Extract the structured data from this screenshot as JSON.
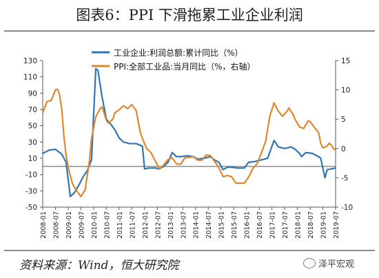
{
  "title": "图表6：PPI 下滑拖累工业企业利润",
  "source": "资料来源：Wind，恒大研究院",
  "watermark": "泽平宏观",
  "watermark_icon": "wechat-icon",
  "chart_data": {
    "type": "line",
    "legend_position": "top-center",
    "grid": false,
    "left_axis": {
      "ylim": [
        -50,
        130
      ],
      "ticks": [
        -50,
        -30,
        -10,
        10,
        30,
        50,
        70,
        90,
        110,
        130
      ]
    },
    "right_axis": {
      "ylim": [
        -10,
        15
      ],
      "ticks": [
        -10,
        -5,
        0,
        5,
        10,
        15
      ]
    },
    "x_range": [
      "2008-01",
      "2019-07"
    ],
    "x_ticks": [
      "2008-01",
      "2008-07",
      "2009-01",
      "2009-07",
      "2010-01",
      "2010-07",
      "2011-01",
      "2011-07",
      "2012-01",
      "2012-07",
      "2013-01",
      "2013-07",
      "2014-01",
      "2014-07",
      "2015-01",
      "2015-07",
      "2016-01",
      "2016-07",
      "2017-01",
      "2017-07",
      "2018-01",
      "2018-07",
      "2019-01",
      "2019-07"
    ],
    "series": [
      {
        "name": "工业企业:利润总额:累计同比（%）",
        "axis": "left",
        "color": "#2e75b6",
        "points": [
          [
            "2008-01",
            16
          ],
          [
            "2008-04",
            20
          ],
          [
            "2008-07",
            21
          ],
          [
            "2008-10",
            15
          ],
          [
            "2008-12",
            5
          ],
          [
            "2009-02",
            -37
          ],
          [
            "2009-04",
            -32
          ],
          [
            "2009-06",
            -23
          ],
          [
            "2009-08",
            -13
          ],
          [
            "2009-10",
            -5
          ],
          [
            "2009-12",
            8
          ],
          [
            "2010-02",
            120
          ],
          [
            "2010-03",
            118
          ],
          [
            "2010-05",
            85
          ],
          [
            "2010-07",
            58
          ],
          [
            "2010-09",
            52
          ],
          [
            "2010-11",
            45
          ],
          [
            "2011-01",
            35
          ],
          [
            "2011-03",
            30
          ],
          [
            "2011-06",
            28
          ],
          [
            "2011-09",
            28
          ],
          [
            "2011-12",
            25
          ],
          [
            "2012-01",
            -3
          ],
          [
            "2012-03",
            -2
          ],
          [
            "2012-06",
            -2
          ],
          [
            "2012-08",
            -3
          ],
          [
            "2012-10",
            0
          ],
          [
            "2012-12",
            5
          ],
          [
            "2013-02",
            17
          ],
          [
            "2013-04",
            12
          ],
          [
            "2013-06",
            12
          ],
          [
            "2013-09",
            13
          ],
          [
            "2013-12",
            12
          ],
          [
            "2014-02",
            9
          ],
          [
            "2014-05",
            10
          ],
          [
            "2014-08",
            12
          ],
          [
            "2014-10",
            8
          ],
          [
            "2014-12",
            5
          ],
          [
            "2015-02",
            -4
          ],
          [
            "2015-04",
            -1
          ],
          [
            "2015-06",
            -1
          ],
          [
            "2015-09",
            -2
          ],
          [
            "2015-12",
            -2
          ],
          [
            "2016-02",
            5
          ],
          [
            "2016-05",
            6
          ],
          [
            "2016-08",
            8
          ],
          [
            "2016-11",
            10
          ],
          [
            "2017-02",
            32
          ],
          [
            "2017-04",
            24
          ],
          [
            "2017-07",
            22
          ],
          [
            "2017-10",
            24
          ],
          [
            "2017-12",
            21
          ],
          [
            "2018-02",
            16
          ],
          [
            "2018-03",
            12
          ],
          [
            "2018-05",
            17
          ],
          [
            "2018-08",
            16
          ],
          [
            "2018-11",
            12
          ],
          [
            "2018-12",
            10
          ],
          [
            "2019-02",
            -14
          ],
          [
            "2019-03",
            -4
          ],
          [
            "2019-05",
            -3
          ],
          [
            "2019-07",
            -2
          ]
        ]
      },
      {
        "name": "PPI:全部工业品:当月同比（%，右轴）",
        "axis": "right",
        "color": "#e3862a",
        "points": [
          [
            "2008-01",
            6.1
          ],
          [
            "2008-03",
            8.0
          ],
          [
            "2008-05",
            8.2
          ],
          [
            "2008-07",
            10.0
          ],
          [
            "2008-08",
            10.1
          ],
          [
            "2008-09",
            9.1
          ],
          [
            "2008-10",
            6.6
          ],
          [
            "2008-11",
            2.0
          ],
          [
            "2008-12",
            -1.1
          ],
          [
            "2009-01",
            -3.3
          ],
          [
            "2009-03",
            -6.0
          ],
          [
            "2009-05",
            -7.2
          ],
          [
            "2009-07",
            -8.2
          ],
          [
            "2009-09",
            -7.0
          ],
          [
            "2009-11",
            -2.1
          ],
          [
            "2009-12",
            1.7
          ],
          [
            "2010-02",
            5.4
          ],
          [
            "2010-04",
            6.8
          ],
          [
            "2010-05",
            7.1
          ],
          [
            "2010-07",
            4.8
          ],
          [
            "2010-08",
            4.3
          ],
          [
            "2010-10",
            5.0
          ],
          [
            "2010-11",
            6.1
          ],
          [
            "2011-01",
            6.6
          ],
          [
            "2011-03",
            7.3
          ],
          [
            "2011-05",
            6.8
          ],
          [
            "2011-07",
            7.5
          ],
          [
            "2011-09",
            6.5
          ],
          [
            "2011-11",
            2.7
          ],
          [
            "2011-12",
            1.7
          ],
          [
            "2012-02",
            0.0
          ],
          [
            "2012-04",
            -0.7
          ],
          [
            "2012-06",
            -2.1
          ],
          [
            "2012-08",
            -3.5
          ],
          [
            "2012-10",
            -2.8
          ],
          [
            "2012-12",
            -1.9
          ],
          [
            "2013-02",
            -1.6
          ],
          [
            "2013-04",
            -2.6
          ],
          [
            "2013-06",
            -2.7
          ],
          [
            "2013-08",
            -1.6
          ],
          [
            "2013-10",
            -1.5
          ],
          [
            "2013-12",
            -1.4
          ],
          [
            "2014-02",
            -2.0
          ],
          [
            "2014-04",
            -2.0
          ],
          [
            "2014-06",
            -1.1
          ],
          [
            "2014-08",
            -1.2
          ],
          [
            "2014-10",
            -2.2
          ],
          [
            "2014-12",
            -3.3
          ],
          [
            "2015-02",
            -4.8
          ],
          [
            "2015-04",
            -4.6
          ],
          [
            "2015-06",
            -4.8
          ],
          [
            "2015-08",
            -5.9
          ],
          [
            "2015-10",
            -5.9
          ],
          [
            "2015-12",
            -5.9
          ],
          [
            "2016-02",
            -4.9
          ],
          [
            "2016-04",
            -3.4
          ],
          [
            "2016-06",
            -2.6
          ],
          [
            "2016-08",
            -0.8
          ],
          [
            "2016-10",
            1.2
          ],
          [
            "2016-12",
            5.5
          ],
          [
            "2017-02",
            7.8
          ],
          [
            "2017-04",
            6.4
          ],
          [
            "2017-06",
            5.5
          ],
          [
            "2017-08",
            6.3
          ],
          [
            "2017-09",
            6.9
          ],
          [
            "2017-11",
            5.8
          ],
          [
            "2017-12",
            4.9
          ],
          [
            "2018-02",
            3.7
          ],
          [
            "2018-04",
            3.4
          ],
          [
            "2018-06",
            4.7
          ],
          [
            "2018-07",
            4.6
          ],
          [
            "2018-09",
            3.6
          ],
          [
            "2018-11",
            2.7
          ],
          [
            "2018-12",
            0.9
          ],
          [
            "2019-01",
            0.1
          ],
          [
            "2019-03",
            0.4
          ],
          [
            "2019-04",
            0.9
          ],
          [
            "2019-05",
            0.6
          ],
          [
            "2019-06",
            0.0
          ],
          [
            "2019-07",
            -0.3
          ]
        ]
      }
    ]
  }
}
